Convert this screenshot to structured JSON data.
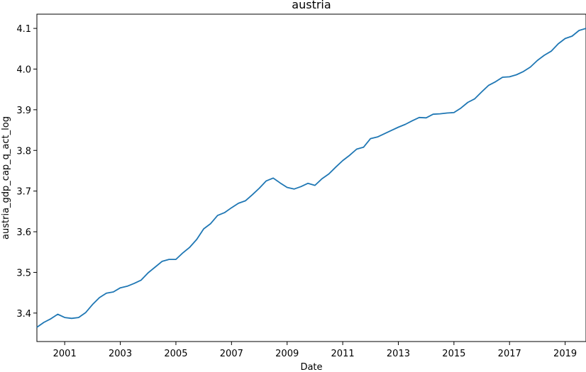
{
  "chart_data": {
    "type": "line",
    "title": "austria",
    "xlabel": "Date",
    "ylabel": "austria_gdp_cap_q_act_log",
    "grid": false,
    "legend": "none",
    "xlim": [
      2000.0,
      2019.75
    ],
    "ylim": [
      3.33,
      4.135
    ],
    "xticks": [
      2001,
      2003,
      2005,
      2007,
      2009,
      2011,
      2013,
      2015,
      2017,
      2019
    ],
    "xtick_labels": [
      "2001",
      "2003",
      "2005",
      "2007",
      "2009",
      "2011",
      "2013",
      "2015",
      "2017",
      "2019"
    ],
    "yticks": [
      3.4,
      3.5,
      3.6,
      3.7,
      3.8,
      3.9,
      4.0,
      4.1
    ],
    "ytick_labels": [
      "3.4",
      "3.5",
      "3.6",
      "3.7",
      "3.8",
      "3.9",
      "4.0",
      "4.1"
    ],
    "line_color": "#1f77b4",
    "series": [
      {
        "x": [
          2000.0,
          2000.25,
          2000.5,
          2000.75,
          2001.0,
          2001.25,
          2001.5,
          2001.75,
          2002.0,
          2002.25,
          2002.5,
          2002.75,
          2003.0,
          2003.25,
          2003.5,
          2003.75,
          2004.0,
          2004.25,
          2004.5,
          2004.75,
          2005.0,
          2005.25,
          2005.5,
          2005.75,
          2006.0,
          2006.25,
          2006.5,
          2006.75,
          2007.0,
          2007.25,
          2007.5,
          2007.75,
          2008.0,
          2008.25,
          2008.5,
          2008.75,
          2009.0,
          2009.25,
          2009.5,
          2009.75,
          2010.0,
          2010.25,
          2010.5,
          2010.75,
          2011.0,
          2011.25,
          2011.5,
          2011.75,
          2012.0,
          2012.25,
          2012.5,
          2012.75,
          2013.0,
          2013.25,
          2013.5,
          2013.75,
          2014.0,
          2014.25,
          2014.5,
          2014.75,
          2015.0,
          2015.25,
          2015.5,
          2015.75,
          2016.0,
          2016.25,
          2016.5,
          2016.75,
          2017.0,
          2017.25,
          2017.5,
          2017.75,
          2018.0,
          2018.25,
          2018.5,
          2018.75,
          2019.0,
          2019.25,
          2019.5,
          2019.75
        ],
        "values": [
          3.365,
          3.377,
          3.386,
          3.397,
          3.389,
          3.387,
          3.389,
          3.401,
          3.421,
          3.438,
          3.449,
          3.452,
          3.462,
          3.466,
          3.473,
          3.481,
          3.499,
          3.513,
          3.527,
          3.532,
          3.532,
          3.548,
          3.562,
          3.581,
          3.607,
          3.62,
          3.64,
          3.647,
          3.659,
          3.67,
          3.676,
          3.691,
          3.707,
          3.725,
          3.732,
          3.72,
          3.709,
          3.705,
          3.711,
          3.719,
          3.714,
          3.73,
          3.742,
          3.759,
          3.775,
          3.788,
          3.803,
          3.808,
          3.829,
          3.833,
          3.841,
          3.849,
          3.857,
          3.864,
          3.873,
          3.881,
          3.88,
          3.889,
          3.89,
          3.892,
          3.893,
          3.904,
          3.918,
          3.927,
          3.944,
          3.96,
          3.969,
          3.98,
          3.981,
          3.986,
          3.994,
          4.005,
          4.021,
          4.034,
          4.044,
          4.062,
          4.075,
          4.081,
          4.095,
          4.1
        ]
      }
    ]
  }
}
